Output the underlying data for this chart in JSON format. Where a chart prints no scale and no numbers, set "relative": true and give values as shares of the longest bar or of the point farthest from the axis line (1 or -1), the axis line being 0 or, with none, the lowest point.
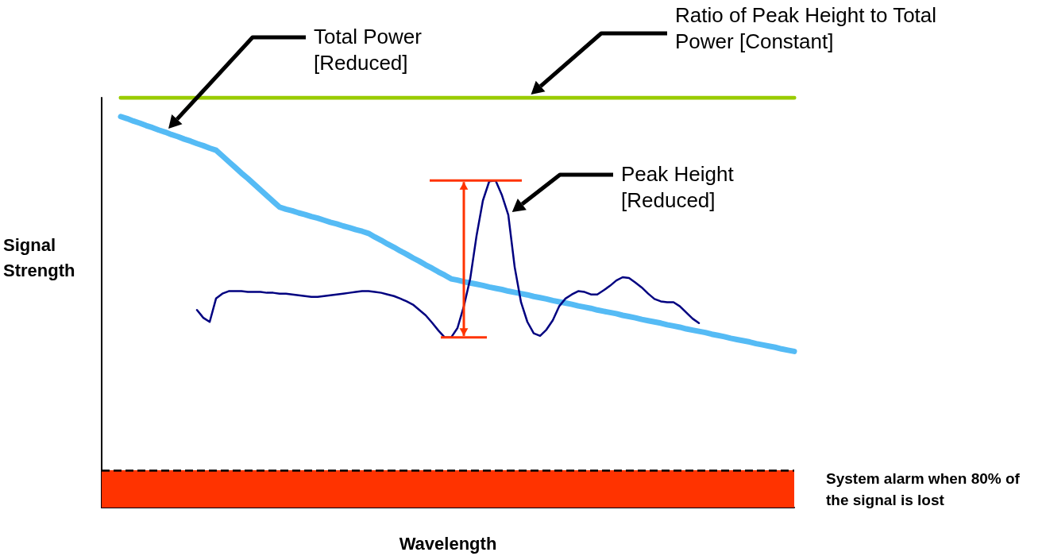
{
  "chart_data": {
    "type": "line",
    "relative": true,
    "xlabel": "Wavelength",
    "ylabel": "Signal Strength",
    "grid": false,
    "categories": [
      null,
      null,
      null,
      null,
      null,
      null,
      null,
      null,
      null,
      null,
      null,
      null,
      null,
      null,
      null,
      null,
      null,
      null,
      null,
      null,
      null,
      null,
      null,
      null,
      null,
      null,
      null,
      null,
      null,
      null,
      null,
      null,
      null,
      null,
      null,
      null,
      null,
      null,
      null,
      null,
      null,
      null,
      null,
      null,
      null,
      null,
      null,
      null,
      null,
      null,
      null,
      null,
      null,
      null,
      null,
      null,
      null,
      null,
      null,
      null,
      null,
      null,
      null,
      null,
      null,
      null,
      null,
      null,
      null,
      null,
      null,
      null,
      null,
      null,
      null,
      null,
      null,
      null,
      null,
      null,
      null,
      null,
      null,
      null,
      null,
      null,
      null,
      null,
      null,
      null,
      null,
      null,
      null,
      null,
      null,
      null,
      null,
      null,
      null,
      null,
      null,
      null,
      null,
      null,
      null,
      null,
      null,
      null,
      null,
      null
    ],
    "series": [
      {
        "color": "#99cc00",
        "values": [
          null,
          null,
          null,
          1,
          1,
          1,
          1,
          1,
          1,
          1,
          1,
          1,
          1,
          1,
          1,
          1,
          1,
          1,
          1,
          1,
          1,
          1,
          1,
          1,
          1,
          1,
          1,
          1,
          1,
          1,
          1,
          1,
          1,
          1,
          1,
          1,
          1,
          1,
          1,
          1,
          1,
          1,
          1,
          1,
          1,
          1,
          1,
          1,
          1,
          1,
          1,
          1,
          1,
          1,
          1,
          1,
          1,
          1,
          1,
          1,
          1,
          1,
          1,
          1,
          1,
          1,
          1,
          1,
          1,
          1,
          1,
          1,
          1,
          1,
          1,
          1,
          1,
          1,
          1,
          1,
          1,
          1,
          1,
          1,
          1,
          1,
          1,
          1,
          1,
          1,
          1,
          1,
          1,
          1,
          1,
          1,
          1,
          1,
          1,
          1,
          1,
          1,
          1,
          1,
          1,
          1,
          1,
          1,
          1,
          1
        ]
      },
      {
        "color": "#55bbf5",
        "values": [
          null,
          null,
          null,
          0.954,
          0.949,
          0.943,
          0.938,
          0.932,
          0.927,
          0.921,
          0.916,
          0.91,
          0.905,
          0.899,
          0.894,
          0.888,
          0.883,
          0.877,
          0.872,
          0.858,
          0.844,
          0.83,
          0.816,
          0.803,
          0.789,
          0.775,
          0.761,
          0.747,
          0.733,
          0.728,
          0.724,
          0.719,
          0.715,
          0.71,
          0.706,
          0.701,
          0.696,
          0.692,
          0.687,
          0.683,
          0.678,
          0.674,
          0.669,
          0.66,
          0.652,
          0.643,
          0.635,
          0.626,
          0.618,
          0.609,
          0.601,
          0.592,
          0.584,
          0.575,
          0.567,
          0.558,
          0.555,
          0.551,
          0.548,
          0.545,
          0.542,
          0.538,
          0.535,
          0.532,
          0.528,
          0.525,
          0.522,
          0.519,
          0.515,
          0.512,
          0.509,
          0.505,
          0.502,
          0.499,
          0.496,
          0.492,
          0.489,
          0.486,
          0.482,
          0.479,
          0.476,
          0.473,
          0.469,
          0.466,
          0.463,
          0.459,
          0.456,
          0.453,
          0.45,
          0.446,
          0.443,
          0.44,
          0.436,
          0.433,
          0.43,
          0.427,
          0.423,
          0.42,
          0.417,
          0.413,
          0.41,
          0.407,
          0.404,
          0.4,
          0.397,
          0.394,
          0.391,
          0.387,
          0.384,
          0.381
        ]
      },
      {
        "color": "#000080",
        "values": [
          null,
          null,
          null,
          null,
          null,
          null,
          null,
          null,
          null,
          null,
          null,
          null,
          null,
          null,
          null,
          0.482,
          0.463,
          0.453,
          0.51,
          0.522,
          0.528,
          0.528,
          0.528,
          0.526,
          0.526,
          0.526,
          0.524,
          0.524,
          0.522,
          0.522,
          0.52,
          0.518,
          0.516,
          0.514,
          0.514,
          0.516,
          0.518,
          0.52,
          0.522,
          0.524,
          0.526,
          0.528,
          0.528,
          0.526,
          0.524,
          0.52,
          0.516,
          0.51,
          0.503,
          0.495,
          0.482,
          0.469,
          0.451,
          0.432,
          0.415,
          0.415,
          0.438,
          0.491,
          0.558,
          0.663,
          0.749,
          0.796,
          0.798,
          0.762,
          0.714,
          0.587,
          0.501,
          0.453,
          0.425,
          0.419,
          0.434,
          0.457,
          0.491,
          0.51,
          0.52,
          0.528,
          0.526,
          0.52,
          0.52,
          0.53,
          0.541,
          0.554,
          0.562,
          0.56,
          0.549,
          0.537,
          0.522,
          0.509,
          0.503,
          0.501,
          0.501,
          0.491,
          0.476,
          0.461,
          0.45,
          null,
          null,
          null,
          null,
          null,
          null,
          null,
          null,
          null,
          null,
          null,
          null,
          null,
          null,
          null
        ]
      }
    ],
    "bands": [
      {
        "axis": "y",
        "from": 0,
        "to": 0.091,
        "color": "#ff3300",
        "label": "System alarm when 80% of the signal is lost"
      }
    ],
    "ref_lines": [
      {
        "axis": "y",
        "value": 0.091,
        "color": "#000000",
        "line_style": "dashed"
      }
    ],
    "annotations": [
      "Total Power [Reduced]",
      "Ratio of Peak Height to Total Power [Constant]",
      "Peak Height [Reduced]"
    ]
  }
}
